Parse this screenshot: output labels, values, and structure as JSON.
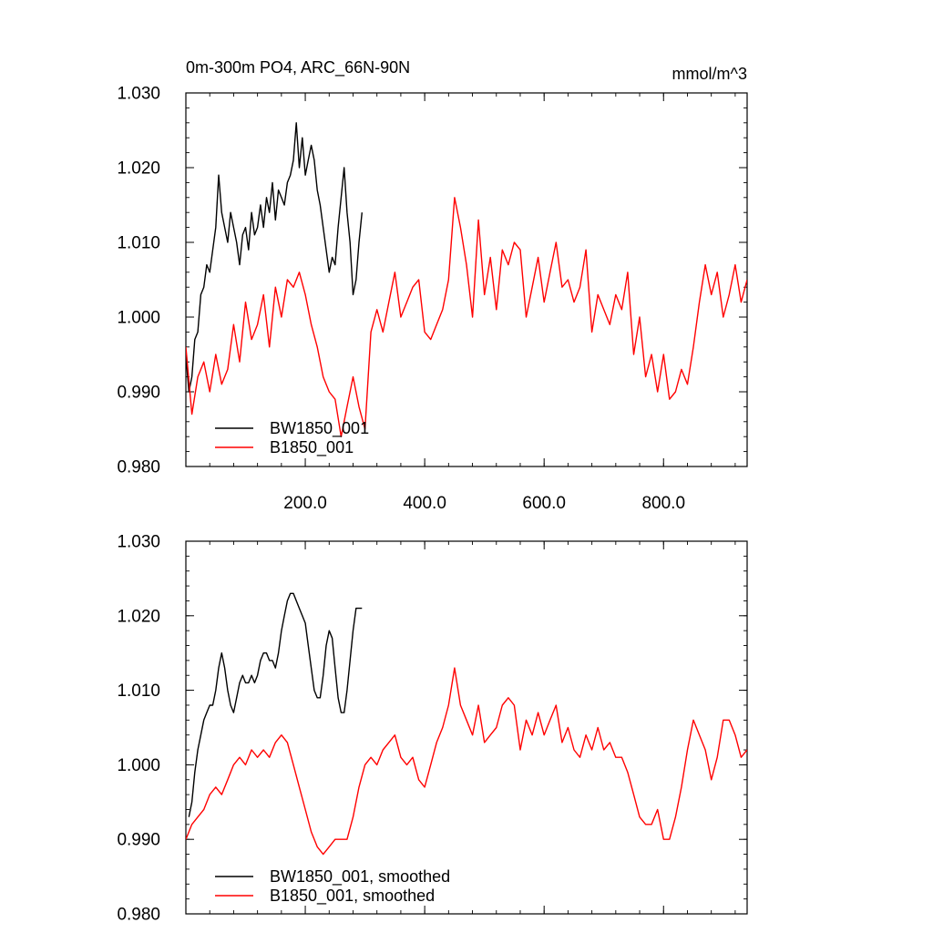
{
  "chart_data": [
    {
      "type": "line",
      "title": "0m-300m PO4, ARC_66N-90N",
      "units": "mmol/m^3",
      "xlim": [
        0,
        940
      ],
      "ylim": [
        0.98,
        1.03
      ],
      "xticks": [
        200,
        400,
        600,
        800
      ],
      "xtick_labels": [
        "200.0",
        "400.0",
        "600.0",
        "800.0"
      ],
      "yticks": [
        0.98,
        0.99,
        1.0,
        1.01,
        1.02,
        1.03
      ],
      "ytick_labels": [
        "0.980",
        "0.990",
        "1.000",
        "1.010",
        "1.020",
        "1.030"
      ],
      "legend_position": "bottom-left",
      "series": [
        {
          "name": "BW1850_001",
          "color": "#000000",
          "x": [
            0,
            5,
            10,
            15,
            20,
            25,
            30,
            35,
            40,
            45,
            50,
            55,
            60,
            65,
            70,
            75,
            80,
            85,
            90,
            95,
            100,
            105,
            110,
            115,
            120,
            125,
            130,
            135,
            140,
            145,
            150,
            155,
            160,
            165,
            170,
            175,
            180,
            185,
            190,
            195,
            200,
            205,
            210,
            215,
            220,
            225,
            230,
            235,
            240,
            245,
            250,
            255,
            260,
            265,
            270,
            275,
            280,
            285,
            290,
            295
          ],
          "values": [
            0.995,
            0.99,
            0.992,
            0.997,
            0.998,
            1.003,
            1.004,
            1.007,
            1.006,
            1.009,
            1.012,
            1.019,
            1.014,
            1.012,
            1.01,
            1.014,
            1.012,
            1.01,
            1.007,
            1.011,
            1.012,
            1.009,
            1.014,
            1.011,
            1.012,
            1.015,
            1.012,
            1.016,
            1.014,
            1.018,
            1.013,
            1.017,
            1.016,
            1.015,
            1.018,
            1.019,
            1.021,
            1.026,
            1.02,
            1.024,
            1.019,
            1.021,
            1.023,
            1.021,
            1.017,
            1.015,
            1.012,
            1.009,
            1.006,
            1.008,
            1.007,
            1.012,
            1.016,
            1.02,
            1.014,
            1.01,
            1.003,
            1.005,
            1.01,
            1.014
          ]
        },
        {
          "name": "B1850_001",
          "color": "#ff0000",
          "x": [
            0,
            10,
            20,
            30,
            40,
            50,
            60,
            70,
            80,
            90,
            100,
            110,
            120,
            130,
            140,
            150,
            160,
            170,
            180,
            190,
            200,
            210,
            220,
            230,
            240,
            250,
            260,
            270,
            280,
            290,
            300,
            310,
            320,
            330,
            340,
            350,
            360,
            370,
            380,
            390,
            400,
            410,
            420,
            430,
            440,
            450,
            460,
            470,
            480,
            490,
            500,
            510,
            520,
            530,
            540,
            550,
            560,
            570,
            580,
            590,
            600,
            610,
            620,
            630,
            640,
            650,
            660,
            670,
            680,
            690,
            700,
            710,
            720,
            730,
            740,
            750,
            760,
            770,
            780,
            790,
            800,
            810,
            820,
            830,
            840,
            850,
            860,
            870,
            880,
            890,
            900,
            910,
            920,
            930,
            940
          ],
          "values": [
            0.996,
            0.987,
            0.992,
            0.994,
            0.99,
            0.995,
            0.991,
            0.993,
            0.999,
            0.994,
            1.002,
            0.997,
            0.999,
            1.003,
            0.996,
            1.004,
            1.0,
            1.005,
            1.004,
            1.006,
            1.003,
            0.999,
            0.996,
            0.992,
            0.99,
            0.989,
            0.984,
            0.988,
            0.992,
            0.988,
            0.985,
            0.998,
            1.001,
            0.998,
            1.002,
            1.006,
            1.0,
            1.002,
            1.004,
            1.005,
            0.998,
            0.997,
            0.999,
            1.001,
            1.005,
            1.016,
            1.012,
            1.007,
            1.0,
            1.013,
            1.003,
            1.008,
            1.001,
            1.009,
            1.007,
            1.01,
            1.009,
            1.0,
            1.004,
            1.008,
            1.002,
            1.006,
            1.01,
            1.004,
            1.005,
            1.002,
            1.004,
            1.009,
            0.998,
            1.003,
            1.001,
            0.999,
            1.003,
            1.001,
            1.006,
            0.995,
            1.0,
            0.992,
            0.995,
            0.99,
            0.995,
            0.989,
            0.99,
            0.993,
            0.991,
            0.996,
            1.002,
            1.007,
            1.003,
            1.006,
            1.0,
            1.003,
            1.007,
            1.002,
            1.005
          ]
        }
      ]
    },
    {
      "type": "line",
      "title": "",
      "xlim": [
        0,
        940
      ],
      "ylim": [
        0.98,
        1.03
      ],
      "yticks": [
        0.98,
        0.99,
        1.0,
        1.01,
        1.02,
        1.03
      ],
      "ytick_labels": [
        "0.980",
        "0.990",
        "1.000",
        "1.010",
        "1.020",
        "1.030"
      ],
      "legend_position": "bottom-left",
      "series": [
        {
          "name": "BW1850_001, smoothed",
          "color": "#000000",
          "x": [
            5,
            10,
            15,
            20,
            25,
            30,
            35,
            40,
            45,
            50,
            55,
            60,
            65,
            70,
            75,
            80,
            85,
            90,
            95,
            100,
            105,
            110,
            115,
            120,
            125,
            130,
            135,
            140,
            145,
            150,
            155,
            160,
            165,
            170,
            175,
            180,
            185,
            190,
            195,
            200,
            205,
            210,
            215,
            220,
            225,
            230,
            235,
            240,
            245,
            250,
            255,
            260,
            265,
            270,
            275,
            280,
            285,
            290,
            295
          ],
          "values": [
            0.993,
            0.995,
            0.999,
            1.002,
            1.004,
            1.006,
            1.007,
            1.008,
            1.008,
            1.01,
            1.013,
            1.015,
            1.013,
            1.01,
            1.008,
            1.007,
            1.009,
            1.011,
            1.012,
            1.011,
            1.011,
            1.012,
            1.011,
            1.012,
            1.014,
            1.015,
            1.015,
            1.014,
            1.014,
            1.013,
            1.015,
            1.018,
            1.02,
            1.022,
            1.023,
            1.023,
            1.022,
            1.021,
            1.02,
            1.019,
            1.016,
            1.013,
            1.01,
            1.009,
            1.009,
            1.012,
            1.016,
            1.018,
            1.017,
            1.013,
            1.009,
            1.007,
            1.007,
            1.01,
            1.014,
            1.018,
            1.021,
            1.021,
            1.021
          ]
        },
        {
          "name": "B1850_001, smoothed",
          "color": "#ff0000",
          "x": [
            0,
            10,
            20,
            30,
            40,
            50,
            60,
            70,
            80,
            90,
            100,
            110,
            120,
            130,
            140,
            150,
            160,
            170,
            180,
            190,
            200,
            210,
            220,
            230,
            240,
            250,
            260,
            270,
            280,
            290,
            300,
            310,
            320,
            330,
            340,
            350,
            360,
            370,
            380,
            390,
            400,
            410,
            420,
            430,
            440,
            450,
            460,
            470,
            480,
            490,
            500,
            510,
            520,
            530,
            540,
            550,
            560,
            570,
            580,
            590,
            600,
            610,
            620,
            630,
            640,
            650,
            660,
            670,
            680,
            690,
            700,
            710,
            720,
            730,
            740,
            750,
            760,
            770,
            780,
            790,
            800,
            810,
            820,
            830,
            840,
            850,
            860,
            870,
            880,
            890,
            900,
            910,
            920,
            930,
            940
          ],
          "values": [
            0.99,
            0.992,
            0.993,
            0.994,
            0.996,
            0.997,
            0.996,
            0.998,
            1.0,
            1.001,
            1.0,
            1.002,
            1.001,
            1.002,
            1.001,
            1.003,
            1.004,
            1.003,
            1.0,
            0.997,
            0.994,
            0.991,
            0.989,
            0.988,
            0.989,
            0.99,
            0.99,
            0.99,
            0.993,
            0.997,
            1.0,
            1.001,
            1.0,
            1.002,
            1.003,
            1.004,
            1.001,
            1.0,
            1.001,
            0.998,
            0.997,
            1.0,
            1.003,
            1.005,
            1.008,
            1.013,
            1.008,
            1.006,
            1.004,
            1.008,
            1.003,
            1.004,
            1.005,
            1.008,
            1.009,
            1.008,
            1.002,
            1.006,
            1.004,
            1.007,
            1.004,
            1.006,
            1.008,
            1.003,
            1.005,
            1.002,
            1.001,
            1.004,
            1.002,
            1.005,
            1.002,
            1.003,
            1.001,
            1.001,
            0.999,
            0.996,
            0.993,
            0.992,
            0.992,
            0.994,
            0.99,
            0.99,
            0.993,
            0.997,
            1.002,
            1.006,
            1.004,
            1.002,
            0.998,
            1.001,
            1.006,
            1.006,
            1.004,
            1.001,
            1.002
          ]
        }
      ]
    }
  ]
}
